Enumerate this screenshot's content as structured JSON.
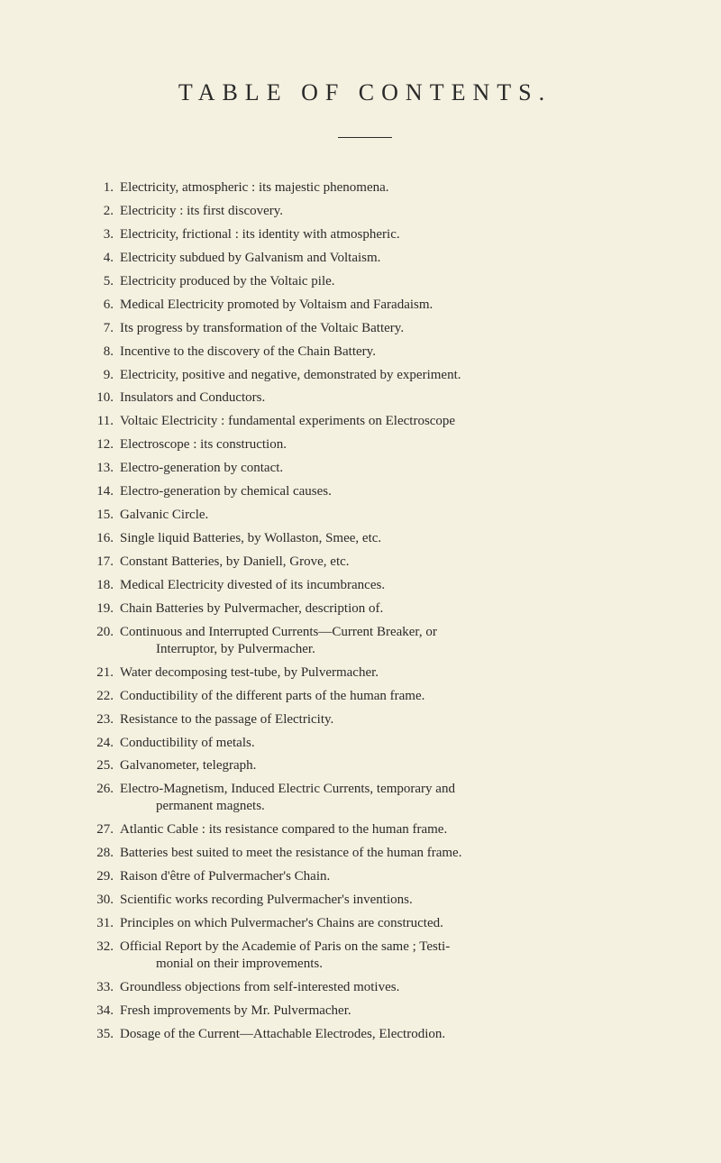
{
  "title": "TABLE OF CONTENTS.",
  "entries": [
    {
      "num": "1.",
      "text": "Electricity, atmospheric : its majestic phenomena."
    },
    {
      "num": "2.",
      "text": "Electricity : its first discovery."
    },
    {
      "num": "3.",
      "text": "Electricity, frictional : its identity with atmospheric."
    },
    {
      "num": "4.",
      "text": "Electricity subdued by Galvanism and Voltaism."
    },
    {
      "num": "5.",
      "text": "Electricity produced by the Voltaic pile."
    },
    {
      "num": "6.",
      "text": "Medical Electricity promoted by Voltaism and Faradaism."
    },
    {
      "num": "7.",
      "text": "Its progress by transformation of the Voltaic Battery."
    },
    {
      "num": "8.",
      "text": "Incentive to the discovery of the Chain Battery."
    },
    {
      "num": "9.",
      "text": "Electricity, positive and negative, demonstrated by experiment."
    },
    {
      "num": "10.",
      "text": "Insulators and Conductors."
    },
    {
      "num": "11.",
      "text": "Voltaic Electricity : fundamental experiments on Electroscope"
    },
    {
      "num": "12.",
      "text": "Electroscope : its construction."
    },
    {
      "num": "13.",
      "text": "Electro-generation by contact."
    },
    {
      "num": "14.",
      "text": "Electro-generation by chemical causes."
    },
    {
      "num": "15.",
      "text": "Galvanic Circle."
    },
    {
      "num": "16.",
      "text": "Single liquid Batteries, by Wollaston, Smee, etc."
    },
    {
      "num": "17.",
      "text": "Constant Batteries, by Daniell, Grove, etc."
    },
    {
      "num": "18.",
      "text": "Medical Electricity divested of its incumbrances."
    },
    {
      "num": "19.",
      "text": "Chain Batteries by Pulvermacher, description of."
    },
    {
      "num": "20.",
      "text": "Continuous and Interrupted Currents—Current Breaker, or",
      "continuation": "Interruptor, by Pulvermacher."
    },
    {
      "num": "21.",
      "text": "Water decomposing test-tube, by Pulvermacher."
    },
    {
      "num": "22.",
      "text": "Conductibility of the different parts of the human frame."
    },
    {
      "num": "23.",
      "text": "Resistance to the passage of Electricity."
    },
    {
      "num": "24.",
      "text": "Conductibility of metals."
    },
    {
      "num": "25.",
      "text": "Galvanometer, telegraph."
    },
    {
      "num": "26.",
      "text": "Electro-Magnetism, Induced Electric Currents, temporary and",
      "continuation": "permanent magnets."
    },
    {
      "num": "27.",
      "text": "Atlantic Cable : its resistance compared to the human frame."
    },
    {
      "num": "28.",
      "text": "Batteries best suited to meet the resistance of the human frame."
    },
    {
      "num": "29.",
      "text": "Raison d'être of Pulvermacher's Chain."
    },
    {
      "num": "30.",
      "text": "Scientific works recording Pulvermacher's inventions."
    },
    {
      "num": "31.",
      "text": "Principles on which Pulvermacher's Chains are constructed."
    },
    {
      "num": "32.",
      "text": "Official Report by the Academie of Paris on the same ; Testi-",
      "continuation": "monial on their improvements."
    },
    {
      "num": "33.",
      "text": "Groundless objections from self-interested motives."
    },
    {
      "num": "34.",
      "text": "Fresh improvements by Mr. Pulvermacher."
    },
    {
      "num": "35.",
      "text": "Dosage of the Current—Attachable Electrodes, Electrodion."
    }
  ]
}
